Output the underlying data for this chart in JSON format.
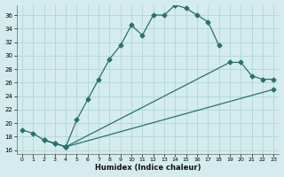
{
  "xlabel": "Humidex (Indice chaleur)",
  "bg_color": "#d4eced",
  "grid_color": "#b8d8d8",
  "line_color": "#2a7070",
  "xlim": [
    -0.5,
    23.5
  ],
  "ylim": [
    15.5,
    37.5
  ],
  "xticks": [
    0,
    1,
    2,
    3,
    4,
    5,
    6,
    7,
    8,
    9,
    10,
    11,
    12,
    13,
    14,
    15,
    16,
    17,
    18,
    19,
    20,
    21,
    22,
    23
  ],
  "yticks": [
    16,
    18,
    20,
    22,
    24,
    26,
    28,
    30,
    32,
    34,
    36
  ],
  "line1_x": [
    0,
    1,
    2,
    3,
    4,
    5,
    6,
    7,
    8,
    9,
    10,
    11,
    12,
    13,
    14,
    15,
    16,
    17,
    18
  ],
  "line1_y": [
    19,
    18.5,
    17.5,
    17,
    16.5,
    20.5,
    23.5,
    26.5,
    29.5,
    31.5,
    34.5,
    33,
    36,
    36,
    37.5,
    37,
    36,
    35,
    31.5
  ],
  "line2_x": [
    2,
    3,
    4,
    19,
    20,
    21,
    22,
    23
  ],
  "line2_y": [
    17.5,
    17,
    16.5,
    29,
    29,
    27,
    26.5,
    26.5
  ],
  "line3_x": [
    2,
    3,
    4,
    23
  ],
  "line3_y": [
    17.5,
    17,
    16.5,
    25
  ]
}
